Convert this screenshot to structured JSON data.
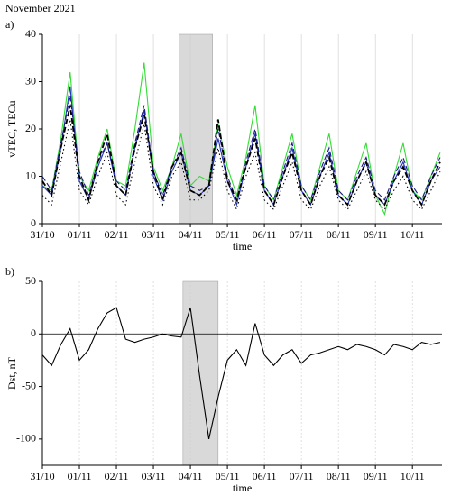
{
  "title": "November 2021",
  "chart_data": [
    {
      "type": "line",
      "panel": "a)",
      "ylabel": "vTEC, TECu",
      "xlabel": "time",
      "xlim": [
        0,
        10.8
      ],
      "ylim": [
        0,
        40
      ],
      "yticks": [
        0,
        10,
        20,
        30,
        40
      ],
      "xticks": [
        {
          "value": 0,
          "label": "31/10"
        },
        {
          "value": 1,
          "label": "01/11"
        },
        {
          "value": 2,
          "label": "02/11"
        },
        {
          "value": 3,
          "label": "03/11"
        },
        {
          "value": 4,
          "label": "04/11"
        },
        {
          "value": 5,
          "label": "05/11"
        },
        {
          "value": 6,
          "label": "06/11"
        },
        {
          "value": 7,
          "label": "07/11"
        },
        {
          "value": 8,
          "label": "08/11"
        },
        {
          "value": 9,
          "label": "09/11"
        },
        {
          "value": 10,
          "label": "10/11"
        }
      ],
      "grid": true,
      "shade": [
        3.7,
        4.6
      ],
      "x": [
        0,
        0.25,
        0.5,
        0.75,
        1,
        1.25,
        1.5,
        1.75,
        2,
        2.25,
        2.5,
        2.75,
        3,
        3.25,
        3.5,
        3.75,
        4,
        4.25,
        4.5,
        4.75,
        5,
        5.25,
        5.5,
        5.75,
        6,
        6.25,
        6.5,
        6.75,
        7,
        7.25,
        7.5,
        7.75,
        8,
        8.25,
        8.5,
        8.75,
        9,
        9.25,
        9.5,
        9.75,
        10,
        10.25,
        10.5,
        10.75
      ],
      "series": [
        {
          "color": "#33dd33",
          "style": "solid",
          "values": [
            8,
            7,
            18,
            32,
            10,
            7,
            14,
            20,
            9,
            8,
            20,
            34,
            12,
            7,
            12,
            19,
            8,
            10,
            9,
            21,
            12,
            6,
            14,
            25,
            8,
            5,
            12,
            19,
            8,
            5,
            12,
            19,
            7,
            5,
            11,
            17,
            6,
            2,
            10,
            17,
            7,
            5,
            10,
            15
          ]
        },
        {
          "color": "#2233bb",
          "style": "solid",
          "values": [
            8,
            6,
            16,
            29,
            9,
            5,
            12,
            17,
            8,
            6,
            16,
            24,
            10,
            5,
            11,
            15,
            7,
            6,
            8,
            18,
            9,
            4,
            12,
            19,
            7,
            4,
            10,
            16,
            7,
            4,
            10,
            15,
            6,
            4,
            9,
            13,
            6,
            4,
            9,
            13,
            7,
            4,
            9,
            12
          ]
        },
        {
          "color": "#1a1a80",
          "style": "dashed",
          "values": [
            10,
            7,
            17,
            27,
            11,
            6,
            13,
            17,
            9,
            7,
            17,
            25,
            11,
            6,
            12,
            16,
            8,
            7,
            8,
            20,
            10,
            5,
            13,
            20,
            8,
            5,
            11,
            17,
            8,
            5,
            11,
            16,
            7,
            5,
            10,
            14,
            7,
            5,
            10,
            14,
            8,
            5,
            10,
            14
          ]
        },
        {
          "color": "#000000",
          "style": "dashed",
          "values": [
            9,
            6,
            16,
            25,
            10,
            5,
            13,
            19,
            8,
            6,
            16,
            23,
            11,
            5,
            12,
            15,
            7,
            6,
            8,
            22,
            9,
            5,
            12,
            18,
            7,
            4,
            10,
            15,
            7,
            4,
            10,
            14,
            6,
            4,
            9,
            13,
            6,
            4,
            9,
            12,
            7,
            4,
            9,
            13
          ]
        },
        {
          "color": "#000000",
          "style": "dotted",
          "values": [
            6,
            4,
            13,
            22,
            7,
            4,
            10,
            15,
            6,
            4,
            13,
            21,
            8,
            4,
            10,
            13,
            5,
            5,
            7,
            16,
            7,
            3,
            10,
            15,
            5,
            3,
            8,
            13,
            5,
            3,
            8,
            12,
            5,
            3,
            7,
            11,
            5,
            3,
            7,
            10,
            5,
            3,
            7,
            11
          ]
        }
      ]
    },
    {
      "type": "line",
      "panel": "b)",
      "ylabel": "Dst, nT",
      "xlabel": "time",
      "xlim": [
        0,
        10.8
      ],
      "ylim": [
        -125,
        50
      ],
      "yticks": [
        50,
        0,
        -50,
        -100
      ],
      "xticks": [
        {
          "value": 0,
          "label": "31/10"
        },
        {
          "value": 1,
          "label": "01/11"
        },
        {
          "value": 2,
          "label": "02/11"
        },
        {
          "value": 3,
          "label": "03/11"
        },
        {
          "value": 4,
          "label": "04/11"
        },
        {
          "value": 5,
          "label": "05/11"
        },
        {
          "value": 6,
          "label": "06/11"
        },
        {
          "value": 7,
          "label": "07/11"
        },
        {
          "value": 8,
          "label": "08/11"
        },
        {
          "value": 9,
          "label": "09/11"
        },
        {
          "value": 10,
          "label": "10/11"
        }
      ],
      "grid": true,
      "zero_line": true,
      "shade": [
        3.8,
        4.75
      ],
      "x": [
        0,
        0.25,
        0.5,
        0.75,
        1,
        1.25,
        1.5,
        1.75,
        2,
        2.25,
        2.5,
        2.75,
        3,
        3.25,
        3.5,
        3.75,
        4,
        4.25,
        4.5,
        4.75,
        5,
        5.25,
        5.5,
        5.75,
        6,
        6.25,
        6.5,
        6.75,
        7,
        7.25,
        7.5,
        7.75,
        8,
        8.25,
        8.5,
        8.75,
        9,
        9.25,
        9.5,
        9.75,
        10,
        10.25,
        10.5,
        10.75
      ],
      "series": [
        {
          "color": "#000000",
          "style": "solid",
          "values": [
            -20,
            -30,
            -10,
            5,
            -25,
            -15,
            5,
            20,
            25,
            -5,
            -8,
            -5,
            -3,
            0,
            -2,
            -3,
            25,
            -40,
            -100,
            -60,
            -25,
            -15,
            -30,
            10,
            -20,
            -30,
            -20,
            -15,
            -28,
            -20,
            -18,
            -15,
            -12,
            -15,
            -10,
            -12,
            -15,
            -20,
            -10,
            -12,
            -15,
            -8,
            -10,
            -8
          ]
        }
      ]
    }
  ]
}
